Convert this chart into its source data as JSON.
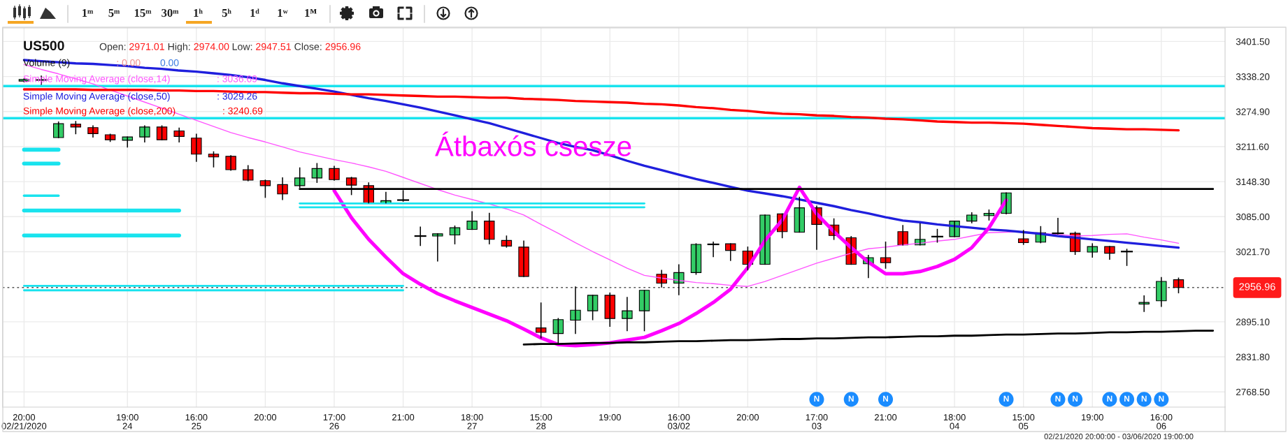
{
  "chart_data": {
    "type": "candlestick",
    "title": "US500",
    "subtitle": "Open: 2971.01 High: 2974.00 Low: 2947.51 Close: 2956.96",
    "categories": [
      "20:00\n02/21/2020",
      null,
      null,
      null,
      null,
      null,
      "19:00\n24",
      null,
      null,
      null,
      "16:00\n25",
      null,
      null,
      null,
      "20:00",
      null,
      null,
      null,
      "17:00\n26",
      null,
      null,
      null,
      "21:00",
      null,
      null,
      null,
      "18:00\n27",
      null,
      null,
      null,
      "15:00\n28",
      null,
      null,
      null,
      "19:00",
      null,
      null,
      null,
      "16:00\n03/02",
      null,
      null,
      null,
      "20:00",
      null,
      null,
      null,
      "17:00\n03",
      null,
      null,
      null,
      "21:00",
      null,
      null,
      null,
      "18:00\n04",
      null,
      null,
      null,
      "15:00\n05",
      null,
      null,
      null,
      "19:00",
      null,
      null,
      null,
      "16:00\n06",
      null,
      null,
      null
    ],
    "ohlc": [
      [
        3330,
        3334,
        3329,
        3333
      ],
      [
        3332,
        3339,
        3324,
        3332
      ],
      [
        3228,
        3256,
        3228,
        3253
      ],
      [
        3252,
        3257,
        3235,
        3247
      ],
      [
        3246,
        3249,
        3229,
        3235
      ],
      [
        3233,
        3234,
        3221,
        3224
      ],
      [
        3223,
        3229,
        3211,
        3229
      ],
      [
        3229,
        3249,
        3220,
        3247
      ],
      [
        3247,
        3249,
        3224,
        3224
      ],
      [
        3240,
        3245,
        3220,
        3230
      ],
      [
        3227,
        3234,
        3185,
        3198
      ],
      [
        3198,
        3202,
        3175,
        3193
      ],
      [
        3194,
        3195,
        3169,
        3170
      ],
      [
        3170,
        3177,
        3150,
        3151
      ],
      [
        3150,
        3151,
        3120,
        3141
      ],
      [
        3143,
        3155,
        3116,
        3126
      ],
      [
        3141,
        3173,
        3138,
        3155
      ],
      [
        3155,
        3181,
        3147,
        3172
      ],
      [
        3172,
        3176,
        3151,
        3152
      ],
      [
        3155,
        3156,
        3125,
        3142
      ],
      [
        3141,
        3146,
        3110,
        3110
      ],
      [
        3110,
        3129,
        3110,
        3114
      ],
      [
        3115,
        3132,
        3113,
        3115
      ],
      [
        3050,
        3066,
        3033,
        3050
      ],
      [
        3050,
        3054,
        3005,
        3054
      ],
      [
        3052,
        3068,
        3036,
        3065
      ],
      [
        3062,
        3094,
        3062,
        3077
      ],
      [
        3077,
        3091,
        3036,
        3044
      ],
      [
        3042,
        3050,
        3030,
        3032
      ],
      [
        3030,
        3041,
        2977,
        2977
      ],
      [
        2884,
        2929,
        2866,
        2876
      ],
      [
        2874,
        2901,
        2856,
        2899
      ],
      [
        2898,
        2958,
        2874,
        2916
      ],
      [
        2915,
        2943,
        2899,
        2943
      ],
      [
        2943,
        2947,
        2887,
        2901
      ],
      [
        2901,
        2939,
        2879,
        2915
      ],
      [
        2915,
        2952,
        2879,
        2952
      ],
      [
        2981,
        2988,
        2958,
        2965
      ],
      [
        2965,
        2998,
        2944,
        2984
      ],
      [
        2984,
        3036,
        2981,
        3035
      ],
      [
        3035,
        3039,
        3013,
        3035
      ],
      [
        3036,
        3036,
        3006,
        3024
      ],
      [
        3023,
        3030,
        2989,
        2999
      ],
      [
        2999,
        3088,
        2999,
        3088
      ],
      [
        3090,
        3090,
        3047,
        3058
      ],
      [
        3057,
        3120,
        3057,
        3101
      ],
      [
        3101,
        3104,
        3026,
        3071
      ],
      [
        3070,
        3081,
        3044,
        3051
      ],
      [
        3047,
        3049,
        2999,
        2999
      ],
      [
        3000,
        3015,
        2975,
        3011
      ],
      [
        3011,
        3039,
        2992,
        3002
      ],
      [
        3058,
        3069,
        3034,
        3034
      ],
      [
        3034,
        3072,
        3034,
        3044
      ],
      [
        3049,
        3062,
        3039,
        3049
      ],
      [
        3049,
        3077,
        3049,
        3077
      ],
      [
        3077,
        3092,
        3074,
        3088
      ],
      [
        3087,
        3097,
        3079,
        3091
      ],
      [
        3091,
        3128,
        3090,
        3128
      ],
      [
        3045,
        3060,
        3035,
        3038
      ],
      [
        3039,
        3067,
        3038,
        3056
      ],
      [
        3055,
        3082,
        3054,
        3055
      ],
      [
        3055,
        3057,
        3017,
        3022
      ],
      [
        3021,
        3036,
        3012,
        3031
      ],
      [
        3031,
        3031,
        3008,
        3019
      ],
      [
        3022,
        3026,
        2997,
        3022
      ],
      [
        2927,
        2942,
        2914,
        2930
      ],
      [
        2933,
        2975,
        2923,
        2968
      ],
      [
        2971.01,
        2974.0,
        2947.51,
        2956.96
      ],
      null,
      null
    ],
    "colors": [
      "#33cc66",
      "#000000",
      "#33cc66",
      "#ff0000",
      "#ff0000",
      "#ff0000",
      "#33cc66",
      "#33cc66",
      "#ff0000",
      "#ff0000",
      "#ff0000",
      "#ff0000",
      "#ff0000",
      "#ff0000",
      "#ff0000",
      "#ff0000",
      "#33cc66",
      "#33cc66",
      "#ff0000",
      "#ff0000",
      "#ff0000",
      "#33cc66",
      "#000000",
      "#000000",
      "#33cc66",
      "#33cc66",
      "#33cc66",
      "#ff0000",
      "#ff0000",
      "#ff0000",
      "#ff0000",
      "#33cc66",
      "#33cc66",
      "#33cc66",
      "#ff0000",
      "#33cc66",
      "#33cc66",
      "#ff0000",
      "#33cc66",
      "#33cc66",
      "#000000",
      "#ff0000",
      "#ff0000",
      "#33cc66",
      "#ff0000",
      "#33cc66",
      "#ff0000",
      "#ff0000",
      "#ff0000",
      "#33cc66",
      "#ff0000",
      "#ff0000",
      "#33cc66",
      "#000000",
      "#33cc66",
      "#33cc66",
      "#33cc66",
      "#33cc66",
      "#ff0000",
      "#33cc66",
      "#000000",
      "#ff0000",
      "#33cc66",
      "#ff0000",
      "#000000",
      "#33cc66",
      "#33cc66",
      "#ff0000",
      null,
      null
    ],
    "series": [
      {
        "name": "Simple Moving Average (close,14)",
        "type": "line",
        "color": "#ff55ff",
        "values": [
          3360,
          3351,
          3343,
          3334,
          3325,
          3314,
          3303,
          3292,
          3281,
          3270,
          3259,
          3248,
          3237,
          3228,
          3220,
          3211,
          3202,
          3195,
          3188,
          3182,
          3175,
          3167,
          3156,
          3145,
          3134,
          3124,
          3116,
          3108,
          3099,
          3088,
          3071,
          3055,
          3038,
          3022,
          3007,
          2992,
          2979,
          2974,
          2970,
          2966,
          2964,
          2961,
          2959,
          2968,
          2979,
          2990,
          3001,
          3010,
          3019,
          3027,
          3030,
          3034,
          3037,
          3041,
          3044,
          3050,
          3056,
          3057,
          3058,
          3055,
          3053,
          3050,
          3051,
          3053,
          3054,
          3048,
          3043,
          3037,
          null,
          null
        ]
      },
      {
        "name": "Simple Moving Average (close,50)",
        "type": "line",
        "color": "#1f1fdd",
        "values": [
          3368,
          3366,
          3364,
          3362,
          3361,
          3359,
          3357,
          3354,
          3352,
          3349,
          3347,
          3344,
          3341,
          3337,
          3332,
          3326,
          3321,
          3316,
          3311,
          3305,
          3299,
          3294,
          3288,
          3282,
          3275,
          3268,
          3261,
          3254,
          3245,
          3236,
          3227,
          3218,
          3211,
          3205,
          3196,
          3186,
          3177,
          3169,
          3161,
          3153,
          3146,
          3139,
          3132,
          3127,
          3122,
          3116,
          3110,
          3104,
          3097,
          3091,
          3084,
          3078,
          3075,
          3071,
          3068,
          3065,
          3062,
          3060,
          3057,
          3054,
          3050,
          3047,
          3044,
          3041,
          3038,
          3035,
          3032,
          3029,
          null,
          null
        ]
      },
      {
        "name": "Simple Moving Average (close,200)",
        "type": "line",
        "color": "#ff0000",
        "values": [
          3315,
          3315,
          3315,
          3315,
          3314,
          3314,
          3314,
          3314,
          3313,
          3313,
          3312,
          3312,
          3311,
          3310,
          3310,
          3309,
          3308,
          3308,
          3307,
          3306,
          3306,
          3305,
          3304,
          3303,
          3302,
          3302,
          3301,
          3300,
          3300,
          3298,
          3297,
          3296,
          3294,
          3293,
          3292,
          3291,
          3289,
          3288,
          3286,
          3283,
          3281,
          3278,
          3276,
          3273,
          3271,
          3270,
          3268,
          3267,
          3265,
          3264,
          3262,
          3261,
          3259,
          3257,
          3256,
          3255,
          3255,
          3254,
          3253,
          3251,
          3249,
          3247,
          3245,
          3244,
          3243,
          3243,
          3242,
          3241,
          null,
          null
        ]
      },
      {
        "type": "line",
        "color": "#ff00ff",
        "values": [
          null,
          null,
          null,
          null,
          null,
          null,
          null,
          null,
          null,
          null,
          null,
          null,
          null,
          null,
          null,
          null,
          null,
          null,
          3132,
          3083,
          3044,
          3012,
          2982,
          2963,
          2946,
          2933,
          2921,
          2909,
          2897,
          2882,
          2866,
          2854,
          2852,
          2854,
          2857,
          2862,
          2867,
          2879,
          2892,
          2910,
          2930,
          2954,
          2993,
          3042,
          3079,
          3138,
          3090,
          3058,
          3029,
          3003,
          2982,
          2982,
          2986,
          2995,
          3008,
          3029,
          3065,
          3115,
          null,
          null,
          null,
          null,
          null,
          null,
          null,
          null,
          null,
          null,
          null,
          null
        ]
      },
      {
        "type": "line",
        "color": "#000000",
        "values": [
          null,
          null,
          null,
          null,
          null,
          null,
          null,
          null,
          null,
          null,
          null,
          null,
          null,
          null,
          null,
          null,
          3135,
          3135,
          3135,
          3135,
          3135,
          3135,
          3135,
          3135,
          3135,
          3135,
          3135,
          3135,
          3135,
          3135,
          3135,
          3135,
          3135,
          3135,
          3135,
          3135,
          3135,
          3135,
          3135,
          3135,
          3135,
          3135,
          3135,
          3135,
          3135,
          3135,
          3135,
          3135,
          3135,
          3135,
          3135,
          3135,
          3135,
          3135,
          3135,
          3135,
          3135,
          3135,
          3135,
          3135,
          3135,
          3135,
          3135,
          3135,
          3135,
          3135,
          3135,
          3135,
          3135,
          3135
        ]
      },
      {
        "type": "line",
        "color": "#000000",
        "values": [
          null,
          null,
          null,
          null,
          null,
          null,
          null,
          null,
          null,
          null,
          null,
          null,
          null,
          null,
          null,
          null,
          null,
          null,
          null,
          null,
          null,
          null,
          null,
          null,
          null,
          null,
          null,
          null,
          null,
          2854,
          2855,
          2855,
          2856,
          2857,
          2857,
          2858,
          2858,
          2859,
          2860,
          2860,
          2861,
          2862,
          2862,
          2863,
          2864,
          2864,
          2865,
          2865,
          2866,
          2867,
          2867,
          2868,
          2869,
          2869,
          2870,
          2870,
          2871,
          2872,
          2872,
          2873,
          2874,
          2874,
          2875,
          2876,
          2876,
          2877,
          2877,
          2878,
          2879,
          2879
        ]
      },
      {
        "type": "line",
        "color": "#19e3ee",
        "values": [
          3206,
          3206,
          3206,
          null,
          null,
          null,
          null,
          null,
          null,
          null,
          null,
          null,
          null,
          null,
          null,
          null,
          null,
          null,
          null,
          null,
          null,
          null,
          null,
          null,
          null,
          null,
          null,
          null,
          null,
          null,
          null,
          null,
          null,
          null,
          null,
          null,
          null,
          null,
          null,
          null,
          null,
          null,
          null,
          null,
          null,
          null,
          null,
          null,
          null,
          null,
          null,
          null,
          null,
          null,
          null,
          null,
          null,
          null,
          null,
          null,
          null,
          null,
          null,
          null,
          null,
          null,
          null,
          null,
          null,
          null
        ]
      },
      {
        "type": "line",
        "color": "#19e3ee",
        "values": [
          3181,
          3181,
          3181,
          null,
          null,
          null,
          null,
          null,
          null,
          null,
          null,
          null,
          null,
          null,
          null,
          null,
          null,
          null,
          null,
          null,
          null,
          null,
          null,
          null,
          null,
          null,
          null,
          null,
          null,
          null,
          null,
          null,
          null,
          null,
          null,
          null,
          null,
          null,
          null,
          null,
          null,
          null,
          null,
          null,
          null,
          null,
          null,
          null,
          null,
          null,
          null,
          null,
          null,
          null,
          null,
          null,
          null,
          null,
          null,
          null,
          null,
          null,
          null,
          null,
          null,
          null,
          null,
          null,
          null,
          null
        ]
      },
      {
        "type": "line",
        "color": "#19e3ee",
        "values": [
          3123,
          3123,
          3123,
          null,
          null,
          null,
          null,
          null,
          null,
          null,
          null,
          null,
          null,
          null,
          null,
          null,
          null,
          null,
          null,
          null,
          null,
          null,
          null,
          null,
          null,
          null,
          null,
          null,
          null,
          null,
          null,
          null,
          null,
          null,
          null,
          null,
          null,
          null,
          null,
          null,
          null,
          null,
          null,
          null,
          null,
          null,
          null,
          null,
          null,
          null,
          null,
          null,
          null,
          null,
          null,
          null,
          null,
          null,
          null,
          null,
          null,
          null,
          null,
          null,
          null,
          null,
          null,
          null,
          null,
          null
        ]
      },
      {
        "type": "line",
        "color": "#19e3ee",
        "values": [
          3096,
          3096,
          3096,
          3096,
          3096,
          3096,
          3096,
          3096,
          3096,
          3096,
          null,
          null,
          null,
          null,
          null,
          null,
          null,
          null,
          null,
          null,
          null,
          null,
          null,
          null,
          null,
          null,
          null,
          null,
          null,
          null,
          null,
          null,
          null,
          null,
          null,
          null,
          null,
          null,
          null,
          null,
          null,
          null,
          null,
          null,
          null,
          null,
          null,
          null,
          null,
          null,
          null,
          null,
          null,
          null,
          null,
          null,
          null,
          null,
          null,
          null,
          null,
          null,
          null,
          null,
          null,
          null,
          null,
          null,
          null,
          null
        ]
      },
      {
        "type": "line",
        "color": "#19e3ee",
        "values": [
          3051,
          3051,
          3051,
          3051,
          3051,
          3051,
          3051,
          3051,
          3051,
          3051,
          null,
          null,
          null,
          null,
          null,
          null,
          null,
          null,
          null,
          null,
          null,
          null,
          null,
          null,
          null,
          null,
          null,
          null,
          null,
          null,
          null,
          null,
          null,
          null,
          null,
          null,
          null,
          null,
          null,
          null,
          null,
          null,
          null,
          null,
          null,
          null,
          null,
          null,
          null,
          null,
          null,
          null,
          null,
          null,
          null,
          null,
          null,
          null,
          null,
          null,
          null,
          null,
          null,
          null,
          null,
          null,
          null,
          null,
          null,
          null
        ]
      },
      {
        "type": "line",
        "color": "#19e3ee",
        "values": [
          null,
          null,
          null,
          null,
          null,
          null,
          null,
          null,
          null,
          null,
          null,
          null,
          null,
          null,
          null,
          null,
          3109,
          3109,
          3109,
          3109,
          3109,
          3109,
          3109,
          3109,
          3109,
          3109,
          3109,
          3109,
          3109,
          3109,
          3109,
          3109,
          3109,
          3109,
          3109,
          3109,
          3109,
          null,
          null,
          null,
          null,
          null,
          null,
          null,
          null,
          null,
          null,
          null,
          null,
          null,
          null,
          null,
          null,
          null,
          null,
          null,
          null,
          null,
          null,
          null,
          null,
          null,
          null,
          null,
          null,
          null,
          null,
          null,
          null,
          null
        ]
      },
      {
        "type": "line",
        "color": "#19e3ee",
        "values": [
          null,
          null,
          null,
          null,
          null,
          null,
          null,
          null,
          null,
          null,
          null,
          null,
          null,
          null,
          null,
          null,
          3102,
          3102,
          3102,
          3102,
          3102,
          3102,
          3102,
          3102,
          3102,
          3102,
          3102,
          3102,
          3102,
          3102,
          3102,
          3102,
          3102,
          3102,
          3102,
          3102,
          3102,
          null,
          null,
          null,
          null,
          null,
          null,
          null,
          null,
          null,
          null,
          null,
          null,
          null,
          null,
          null,
          null,
          null,
          null,
          null,
          null,
          null,
          null,
          null,
          null,
          null,
          null,
          null,
          null,
          null,
          null,
          null,
          null,
          null
        ]
      },
      {
        "type": "line",
        "color": "#19e3ee",
        "values": [
          2960,
          2960,
          2960,
          2960,
          2960,
          2960,
          2960,
          2960,
          2960,
          2960,
          2960,
          2960,
          2960,
          2960,
          2960,
          2960,
          2960,
          2960,
          2960,
          2960,
          2960,
          2960,
          2960,
          null,
          null,
          null,
          null,
          null,
          null,
          null,
          null,
          null,
          null,
          null,
          null,
          null,
          null,
          null,
          null,
          null,
          null,
          null,
          null,
          null,
          null,
          null,
          null,
          null,
          null,
          null,
          null,
          null,
          null,
          null,
          null,
          null,
          null,
          null,
          null,
          null,
          null,
          null,
          null,
          null,
          null,
          null,
          null,
          null,
          null,
          null
        ]
      },
      {
        "type": "line",
        "color": "#19e3ee",
        "values": [
          2952,
          2952,
          2952,
          2952,
          2952,
          2952,
          2952,
          2952,
          2952,
          2952,
          2952,
          2952,
          2952,
          2952,
          2952,
          2952,
          2952,
          2952,
          2952,
          2952,
          2952,
          2952,
          2952,
          null,
          null,
          null,
          null,
          null,
          null,
          null,
          null,
          null,
          null,
          null,
          null,
          null,
          null,
          null,
          null,
          null,
          null,
          null,
          null,
          null,
          null,
          null,
          null,
          null,
          null,
          null,
          null,
          null,
          null,
          null,
          null,
          null,
          null,
          null,
          null,
          null,
          null,
          null,
          null,
          null,
          null,
          null,
          null,
          null,
          null,
          null
        ]
      },
      {
        "type": "scatter",
        "color": "#1a8cff",
        "marker": "circle",
        "values": [
          null,
          null,
          null,
          null,
          null,
          null,
          null,
          null,
          null,
          null,
          null,
          null,
          null,
          null,
          null,
          null,
          null,
          null,
          null,
          null,
          null,
          null,
          null,
          null,
          null,
          null,
          null,
          null,
          null,
          null,
          null,
          null,
          null,
          null,
          null,
          null,
          null,
          null,
          null,
          null,
          null,
          null,
          null,
          null,
          null,
          null,
          2755,
          null,
          2755,
          null,
          2755,
          null,
          null,
          null,
          null,
          null,
          null,
          2755,
          null,
          null,
          2755,
          2755,
          null,
          2755,
          2755,
          2755,
          2755,
          null,
          null,
          null
        ],
        "value_labels": [
          null,
          null,
          null,
          null,
          null,
          null,
          null,
          null,
          null,
          null,
          null,
          null,
          null,
          null,
          null,
          null,
          null,
          null,
          null,
          null,
          null,
          null,
          null,
          null,
          null,
          null,
          null,
          null,
          null,
          null,
          null,
          null,
          null,
          null,
          null,
          null,
          null,
          null,
          null,
          null,
          null,
          null,
          null,
          null,
          null,
          null,
          "N",
          null,
          "N",
          null,
          "N",
          null,
          null,
          null,
          null,
          null,
          null,
          "N",
          null,
          null,
          "N",
          "N",
          null,
          "N",
          "N",
          "N",
          "N",
          null,
          null,
          null
        ]
      }
    ],
    "ylim": [
      2741,
      3426
    ],
    "yticks": [
      {
        "value": 2768.5,
        "label": "2768.50"
      },
      {
        "value": 2831.8,
        "label": "2831.80"
      },
      {
        "value": 2895.1,
        "label": "2895.10"
      },
      {
        "value": 3021.7,
        "label": "3021.70"
      },
      {
        "value": 3085,
        "label": "3085.00"
      },
      {
        "value": 3148.3,
        "label": "3148.30"
      },
      {
        "value": 3211.6,
        "label": "3211.60"
      },
      {
        "value": 3274.9,
        "label": "3274.90"
      },
      {
        "value": 3338.2,
        "label": "3338.20"
      },
      {
        "value": 3401.5,
        "label": "3401.50"
      }
    ],
    "ref_lines": [
      {
        "axis": "y",
        "value": 3321,
        "color": "#19e3ee"
      },
      {
        "axis": "y",
        "value": 3263,
        "color": "#19e3ee"
      },
      {
        "axis": "y",
        "value": 2956.96,
        "label": "2956.96",
        "line_style": "dotted",
        "color": "#555555"
      }
    ],
    "grid": true,
    "legend": "top left",
    "annotations": [
      "Átbaxós csesze",
      "Volume (9)",
      ": 0.00",
      "0.00",
      ": 3036.69",
      ": 3029.26",
      ": 3240.69",
      "1ᵐ",
      "5ᵐ",
      "15ᵐ",
      "30ᵐ",
      "1ʰ",
      "5ʰ",
      "1ᵈ",
      "1ʷ",
      "1ᴹ",
      "02/21/2020 20:00:00 - 03/06/2020 19:00:00"
    ]
  }
}
